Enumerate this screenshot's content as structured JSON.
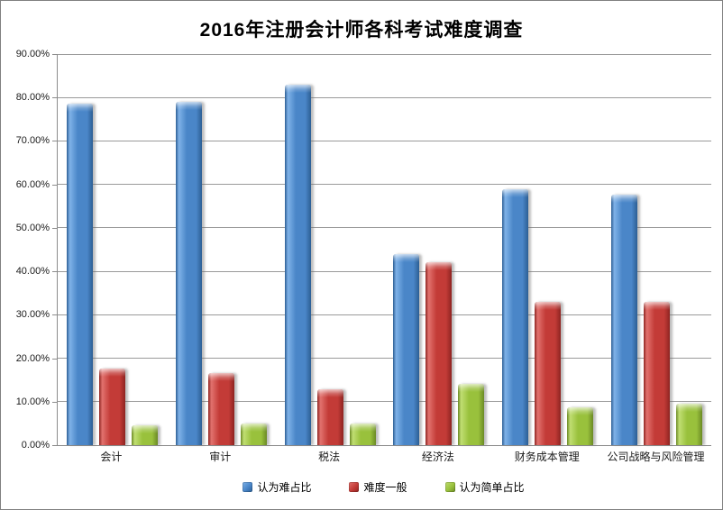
{
  "title": "2016年注册会计师各科考试难度调查",
  "chart_data": {
    "type": "bar",
    "title": "2016年注册会计师各科考试难度调查",
    "categories": [
      "会计",
      "审计",
      "税法",
      "经济法",
      "财务成本管理",
      "公司战略与风险管理"
    ],
    "series": [
      {
        "name": "认为难占比",
        "values": [
          78.5,
          79.0,
          83.0,
          44.0,
          59.0,
          57.7
        ],
        "color": "#4A86C8",
        "color_light": "#7FB2E8",
        "color_dark": "#2C5E94"
      },
      {
        "name": "难度一般",
        "values": [
          17.6,
          16.5,
          12.8,
          42.0,
          32.9,
          33.0
        ],
        "color": "#C33B37",
        "color_light": "#E2726E",
        "color_dark": "#8E2421"
      },
      {
        "name": "认为简单占比",
        "values": [
          4.5,
          5.0,
          4.9,
          14.1,
          8.7,
          9.6
        ],
        "color": "#99C13C",
        "color_light": "#C0DE72",
        "color_dark": "#6B8A25"
      }
    ],
    "ylabel": "",
    "xlabel": "",
    "ylim": [
      0,
      90
    ],
    "ytick_step": 10,
    "ytick_labels": [
      "0.00%",
      "10.00%",
      "20.00%",
      "30.00%",
      "40.00%",
      "50.00%",
      "60.00%",
      "70.00%",
      "80.00%",
      "90.00%"
    ],
    "grid": true,
    "legend_position": "bottom"
  }
}
